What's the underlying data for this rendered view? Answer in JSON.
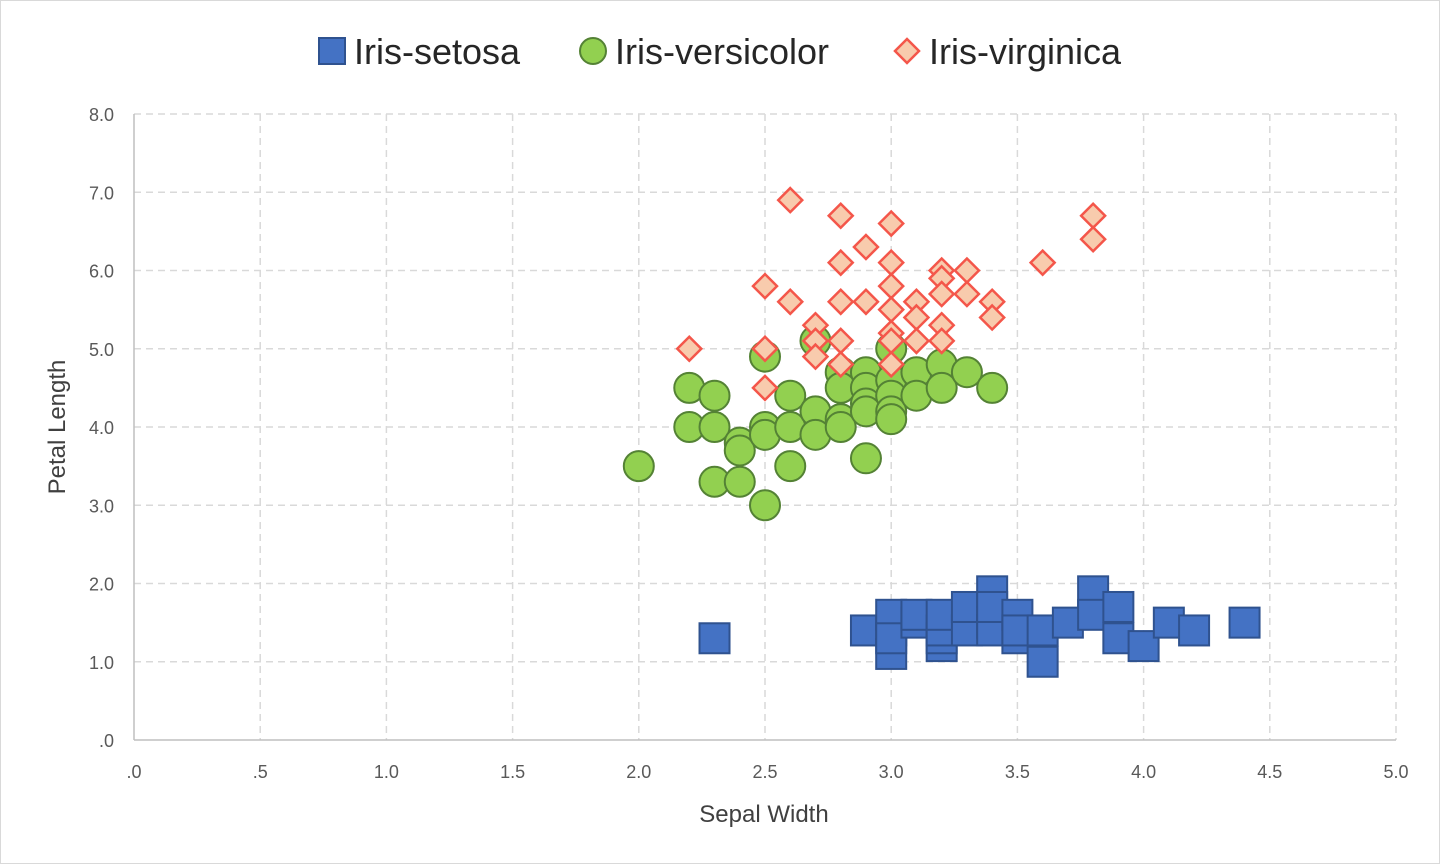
{
  "chart_data": {
    "type": "scatter",
    "xlabel": "Sepal Width",
    "ylabel": "Petal Length",
    "xlim": [
      0,
      5
    ],
    "ylim": [
      0,
      8
    ],
    "x_ticks": [
      ".0",
      ".5",
      "1.0",
      "1.5",
      "2.0",
      "2.5",
      "3.0",
      "3.5",
      "4.0",
      "4.5",
      "5.0"
    ],
    "y_ticks": [
      ".0",
      "1.0",
      "2.0",
      "3.0",
      "4.0",
      "5.0",
      "6.0",
      "7.0",
      "8.0"
    ],
    "x_tick_values": [
      0,
      0.5,
      1.0,
      1.5,
      2.0,
      2.5,
      3.0,
      3.5,
      4.0,
      4.5,
      5.0
    ],
    "y_tick_values": [
      0,
      1,
      2,
      3,
      4,
      5,
      6,
      7,
      8
    ],
    "grid": true,
    "legend_position": "top",
    "series": [
      {
        "name": "Iris-setosa",
        "marker": "square",
        "color": "#4472C4",
        "edge_color": "#2F528F",
        "points": [
          [
            2.3,
            1.3
          ],
          [
            2.9,
            1.4
          ],
          [
            3.0,
            1.1
          ],
          [
            3.0,
            1.4
          ],
          [
            3.0,
            1.6
          ],
          [
            3.0,
            1.3
          ],
          [
            3.1,
            1.5
          ],
          [
            3.1,
            1.6
          ],
          [
            3.2,
            1.2
          ],
          [
            3.2,
            1.3
          ],
          [
            3.2,
            1.4
          ],
          [
            3.2,
            1.6
          ],
          [
            3.3,
            1.4
          ],
          [
            3.3,
            1.7
          ],
          [
            3.4,
            1.9
          ],
          [
            3.4,
            1.5
          ],
          [
            3.4,
            1.4
          ],
          [
            3.4,
            1.7
          ],
          [
            3.5,
            1.3
          ],
          [
            3.5,
            1.6
          ],
          [
            3.5,
            1.4
          ],
          [
            3.6,
            1.0
          ],
          [
            3.6,
            1.4
          ],
          [
            3.7,
            1.5
          ],
          [
            3.8,
            1.9
          ],
          [
            3.8,
            1.6
          ],
          [
            3.9,
            1.3
          ],
          [
            3.9,
            1.7
          ],
          [
            4.0,
            1.2
          ],
          [
            4.1,
            1.5
          ],
          [
            4.2,
            1.4
          ],
          [
            4.4,
            1.5
          ]
        ]
      },
      {
        "name": "Iris-versicolor",
        "marker": "circle",
        "color": "#92D050",
        "edge_color": "#548235",
        "points": [
          [
            2.0,
            3.5
          ],
          [
            2.2,
            4.5
          ],
          [
            2.2,
            4.0
          ],
          [
            2.3,
            4.4
          ],
          [
            2.3,
            4.0
          ],
          [
            2.3,
            3.3
          ],
          [
            2.4,
            3.8
          ],
          [
            2.4,
            3.7
          ],
          [
            2.4,
            3.3
          ],
          [
            2.5,
            4.9
          ],
          [
            2.5,
            4.0
          ],
          [
            2.5,
            3.9
          ],
          [
            2.5,
            3.0
          ],
          [
            2.6,
            4.4
          ],
          [
            2.6,
            4.0
          ],
          [
            2.6,
            3.5
          ],
          [
            2.7,
            5.1
          ],
          [
            2.7,
            4.2
          ],
          [
            2.7,
            3.9
          ],
          [
            2.8,
            4.7
          ],
          [
            2.8,
            4.5
          ],
          [
            2.8,
            4.1
          ],
          [
            2.8,
            4.0
          ],
          [
            2.9,
            4.7
          ],
          [
            2.9,
            4.5
          ],
          [
            2.9,
            4.3
          ],
          [
            2.9,
            4.2
          ],
          [
            2.9,
            3.6
          ],
          [
            3.0,
            5.0
          ],
          [
            3.0,
            4.6
          ],
          [
            3.0,
            4.4
          ],
          [
            3.0,
            4.2
          ],
          [
            3.0,
            4.1
          ],
          [
            3.1,
            4.7
          ],
          [
            3.1,
            4.4
          ],
          [
            3.2,
            4.8
          ],
          [
            3.2,
            4.5
          ],
          [
            3.3,
            4.7
          ],
          [
            3.4,
            4.5
          ]
        ]
      },
      {
        "name": "Iris-virginica",
        "marker": "diamond",
        "color": "#F8CBAD",
        "edge_color": "#F4564A",
        "points": [
          [
            2.2,
            5.0
          ],
          [
            2.5,
            5.8
          ],
          [
            2.5,
            5.0
          ],
          [
            2.5,
            4.5
          ],
          [
            2.6,
            6.9
          ],
          [
            2.6,
            5.6
          ],
          [
            2.7,
            5.3
          ],
          [
            2.7,
            5.1
          ],
          [
            2.7,
            4.9
          ],
          [
            2.8,
            6.7
          ],
          [
            2.8,
            6.1
          ],
          [
            2.8,
            5.6
          ],
          [
            2.8,
            5.1
          ],
          [
            2.8,
            4.8
          ],
          [
            2.9,
            6.3
          ],
          [
            2.9,
            5.6
          ],
          [
            3.0,
            6.6
          ],
          [
            3.0,
            6.1
          ],
          [
            3.0,
            5.8
          ],
          [
            3.0,
            5.5
          ],
          [
            3.0,
            5.2
          ],
          [
            3.0,
            5.1
          ],
          [
            3.0,
            4.8
          ],
          [
            3.1,
            5.6
          ],
          [
            3.1,
            5.4
          ],
          [
            3.1,
            5.1
          ],
          [
            3.2,
            6.0
          ],
          [
            3.2,
            5.9
          ],
          [
            3.2,
            5.7
          ],
          [
            3.2,
            5.3
          ],
          [
            3.2,
            5.1
          ],
          [
            3.3,
            6.0
          ],
          [
            3.3,
            5.7
          ],
          [
            3.4,
            5.6
          ],
          [
            3.4,
            5.4
          ],
          [
            3.6,
            6.1
          ],
          [
            3.8,
            6.7
          ],
          [
            3.8,
            6.4
          ]
        ]
      }
    ]
  }
}
